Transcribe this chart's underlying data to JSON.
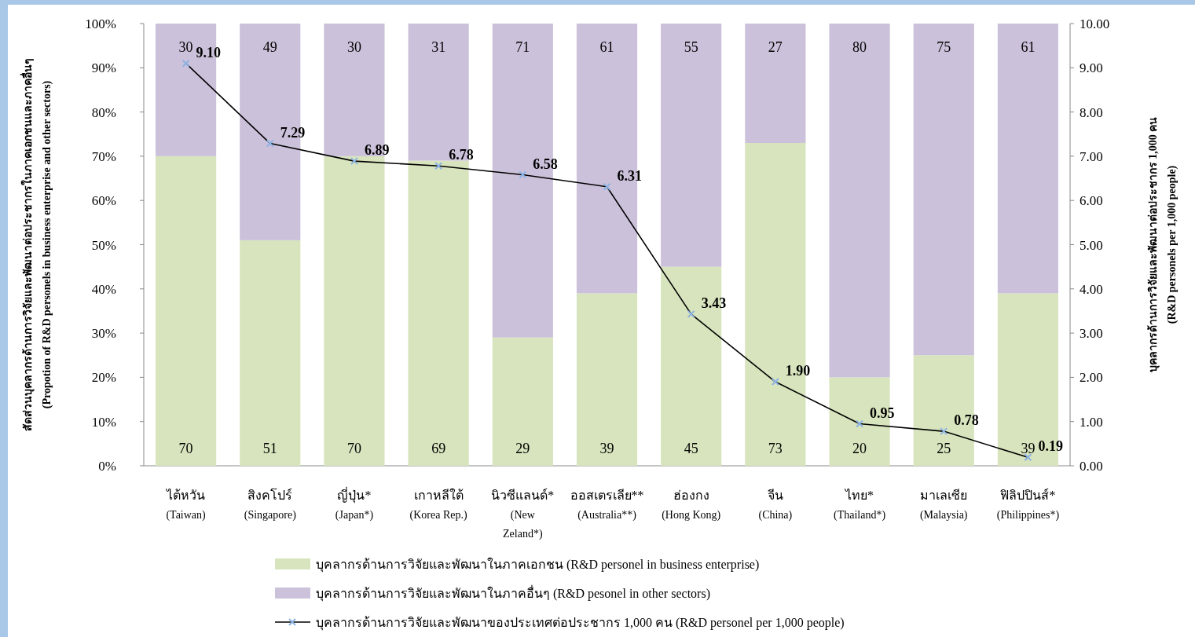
{
  "chart_data": {
    "type": "bar",
    "stacked": true,
    "data_labels": true,
    "legend": "bottom",
    "marker": "cross",
    "line_style": "solid",
    "ylabel": "สัดส่วนบุคลากรด้านการวิจัยและพัฒนาต่อประชากรในภาคเอกชนและภาคอื่นๆ\n(Propotion of R&D personels in business enterprise and other sectors)",
    "y2label": "บุคลากรด้านการวิจัยและพัฒนาต่อประชากร 1,000 คน\n(R&D personels per 1,000 people)",
    "categories": [
      "ไต้หวัน\n(Taiwan)",
      "สิงคโปร์\n(Singapore)",
      "ญี่ปุ่น*\n(Japan*)",
      "เกาหลีใต้\n(Korea Rep.)",
      "นิวซีแลนด์*\n(New\nZeland*)",
      "ออสเตรเลีย**\n(Australia**)",
      "ฮ่องกง\n(Hong Kong)",
      "จีน\n(China)",
      "ไทย*\n(Thailand*)",
      "มาเลเซีย\n(Malaysia)",
      "ฟิลิปปินส์*\n(Philippines*)"
    ],
    "series": [
      {
        "name": "บุคลากรด้านการวิจัยและพัฒนาในภาคเอกชน (R&D personel in business enterprise)",
        "color": "#d7e4bd",
        "values": [
          70,
          51,
          70,
          69,
          29,
          39,
          45,
          73,
          20,
          25,
          39
        ]
      },
      {
        "name": "บุคลากรด้านการวิจัยและพัฒนาในภาคอื่นๆ (R&D pesonel in other sectors)",
        "color": "#ccc1da",
        "values": [
          30,
          49,
          30,
          31,
          71,
          61,
          55,
          27,
          80,
          75,
          61
        ]
      },
      {
        "name": "บุคลากรด้านการวิจัยและพัฒนาของประเทศต่อประชากร 1,000 คน (R&D personel per 1,000 people)",
        "type": "line",
        "axis": "y2",
        "color": "#000000",
        "values": [
          9.1,
          7.29,
          6.89,
          6.78,
          6.58,
          6.31,
          3.43,
          1.9,
          0.95,
          0.78,
          0.19
        ],
        "value_labels": [
          "9.10",
          "7.29",
          "6.89",
          "6.78",
          "6.58",
          "6.31",
          "3.43",
          "1.90",
          "0.95",
          "0.78",
          "0.19"
        ]
      }
    ],
    "ylim": [
      0,
      100
    ],
    "yticks": [
      {
        "value": 0,
        "label": "0%"
      },
      {
        "value": 10,
        "label": "10%"
      },
      {
        "value": 20,
        "label": "20%"
      },
      {
        "value": 30,
        "label": "30%"
      },
      {
        "value": 40,
        "label": "40%"
      },
      {
        "value": 50,
        "label": "50%"
      },
      {
        "value": 60,
        "label": "60%"
      },
      {
        "value": 70,
        "label": "70%"
      },
      {
        "value": 80,
        "label": "80%"
      },
      {
        "value": 90,
        "label": "90%"
      },
      {
        "value": 100,
        "label": "100%"
      }
    ],
    "y2lim": [
      0,
      10
    ],
    "y2ticks": [
      {
        "value": 0,
        "label": "0.00"
      },
      {
        "value": 1,
        "label": "1.00"
      },
      {
        "value": 2,
        "label": "2.00"
      },
      {
        "value": 3,
        "label": "3.00"
      },
      {
        "value": 4,
        "label": "4.00"
      },
      {
        "value": 5,
        "label": "5.00"
      },
      {
        "value": 6,
        "label": "6.00"
      },
      {
        "value": 7,
        "label": "7.00"
      },
      {
        "value": 8,
        "label": "8.00"
      },
      {
        "value": 9,
        "label": "9.00"
      },
      {
        "value": 10,
        "label": "10.00"
      }
    ]
  }
}
